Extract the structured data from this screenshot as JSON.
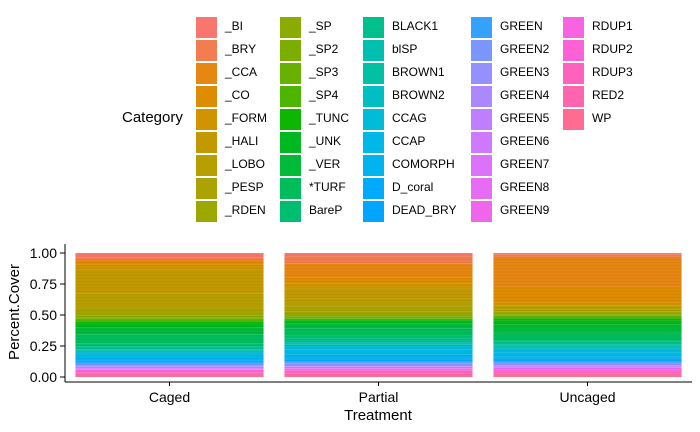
{
  "chart_data": {
    "type": "bar",
    "stacked": "percent",
    "xlabel": "Treatment",
    "ylabel": "Percent.Cover",
    "ylim": [
      0,
      1
    ],
    "yticks": [
      "0.00",
      "0.25",
      "0.50",
      "0.75",
      "1.00"
    ],
    "grid": false,
    "legend_position": "top",
    "legend_title": "Category",
    "categories": [
      "Caged",
      "Partial",
      "Uncaged"
    ],
    "series": [
      {
        "name": "_BI",
        "color": "#F8766D",
        "values": [
          0.035,
          0.025,
          0.01
        ]
      },
      {
        "name": "_BRY",
        "color": "#F17D50",
        "values": [
          0.02,
          0.06,
          0.02
        ]
      },
      {
        "name": "_CCA",
        "color": "#E68613",
        "values": [
          0.025,
          0.11,
          0.23
        ]
      },
      {
        "name": "_CO",
        "color": "#DE8C00",
        "values": [
          0.02,
          0.045,
          0.12
        ]
      },
      {
        "name": "_FORM",
        "color": "#CF9400",
        "values": [
          0.04,
          0.04,
          0.02
        ]
      },
      {
        "name": "_HALI",
        "color": "#C29A00",
        "values": [
          0.2,
          0.08,
          0.01
        ]
      },
      {
        "name": "_LOBO",
        "color": "#B79F00",
        "values": [
          0.12,
          0.06,
          0.02
        ]
      },
      {
        "name": "_PESP",
        "color": "#ABA300",
        "values": [
          0.05,
          0.04,
          0.02
        ]
      },
      {
        "name": "_RDEN",
        "color": "#9AA800",
        "values": [
          0.02,
          0.03,
          0.01
        ]
      },
      {
        "name": "_SP",
        "color": "#8AAB00",
        "values": [
          0.015,
          0.01,
          0.01
        ]
      },
      {
        "name": "_SP2",
        "color": "#7CAE00",
        "values": [
          0.01,
          0.01,
          0.01
        ]
      },
      {
        "name": "_SP3",
        "color": "#68B100",
        "values": [
          0.01,
          0.01,
          0.01
        ]
      },
      {
        "name": "_SP4",
        "color": "#4DB400",
        "values": [
          0.01,
          0.005,
          0.01
        ]
      },
      {
        "name": "_TUNC",
        "color": "#0CB702",
        "values": [
          0.02,
          0.01,
          0.02
        ]
      },
      {
        "name": "_UNK",
        "color": "#00B81F",
        "values": [
          0.03,
          0.02,
          0.03
        ]
      },
      {
        "name": "_VER",
        "color": "#00BA38",
        "values": [
          0.06,
          0.04,
          0.06
        ]
      },
      {
        "name": "*TURF",
        "color": "#00BD5C",
        "values": [
          0.08,
          0.06,
          0.06
        ]
      },
      {
        "name": "BareP",
        "color": "#00BE70",
        "values": [
          0.02,
          0.02,
          0.01
        ]
      },
      {
        "name": "BLACK1",
        "color": "#00C08B",
        "values": [
          0.02,
          0.03,
          0.02
        ]
      },
      {
        "name": "blSP",
        "color": "#00C0AF",
        "values": [
          0.01,
          0.01,
          0.01
        ]
      },
      {
        "name": "BROWN1",
        "color": "#00C1A3",
        "values": [
          0.01,
          0.01,
          0.01
        ]
      },
      {
        "name": "BROWN2",
        "color": "#00BFC4",
        "values": [
          0.01,
          0.01,
          0.01
        ]
      },
      {
        "name": "CCAG",
        "color": "#00BCD8",
        "values": [
          0.02,
          0.03,
          0.03
        ]
      },
      {
        "name": "CCAP",
        "color": "#00B8E7",
        "values": [
          0.03,
          0.04,
          0.03
        ]
      },
      {
        "name": "COMORPH",
        "color": "#00B4F0",
        "values": [
          0.02,
          0.03,
          0.02
        ]
      },
      {
        "name": "D_coral",
        "color": "#00ABFD",
        "values": [
          0.01,
          0.01,
          0.01
        ]
      },
      {
        "name": "DEAD_BRY",
        "color": "#00A5FF",
        "values": [
          0.01,
          0.01,
          0.01
        ]
      },
      {
        "name": "GREEN",
        "color": "#35A2FF",
        "values": [
          0.01,
          0.01,
          0.01
        ]
      },
      {
        "name": "GREEN2",
        "color": "#7997FF",
        "values": [
          0.01,
          0.01,
          0.01
        ]
      },
      {
        "name": "GREEN3",
        "color": "#9590FF",
        "values": [
          0.01,
          0.01,
          0.01
        ]
      },
      {
        "name": "GREEN4",
        "color": "#AC88FF",
        "values": [
          0.005,
          0.01,
          0.005
        ]
      },
      {
        "name": "GREEN5",
        "color": "#BF80FF",
        "values": [
          0.005,
          0.005,
          0.005
        ]
      },
      {
        "name": "GREEN6",
        "color": "#CE79FF",
        "values": [
          0.005,
          0.005,
          0.005
        ]
      },
      {
        "name": "GREEN7",
        "color": "#DC71FA",
        "values": [
          0.005,
          0.005,
          0.005
        ]
      },
      {
        "name": "GREEN8",
        "color": "#E76BF3",
        "values": [
          0.005,
          0.005,
          0.005
        ]
      },
      {
        "name": "GREEN9",
        "color": "#F066EA",
        "values": [
          0.005,
          0.005,
          0.005
        ]
      },
      {
        "name": "RDUP1",
        "color": "#F763E0",
        "values": [
          0.01,
          0.01,
          0.01
        ]
      },
      {
        "name": "RDUP2",
        "color": "#FC61D5",
        "values": [
          0.01,
          0.01,
          0.01
        ]
      },
      {
        "name": "RDUP3",
        "color": "#FF62BC",
        "values": [
          0.01,
          0.01,
          0.01
        ]
      },
      {
        "name": "RED2",
        "color": "#FF65AE",
        "values": [
          0.01,
          0.01,
          0.01
        ]
      },
      {
        "name": "WP",
        "color": "#FF6C91",
        "values": [
          0.02,
          0.02,
          0.02
        ]
      }
    ]
  }
}
